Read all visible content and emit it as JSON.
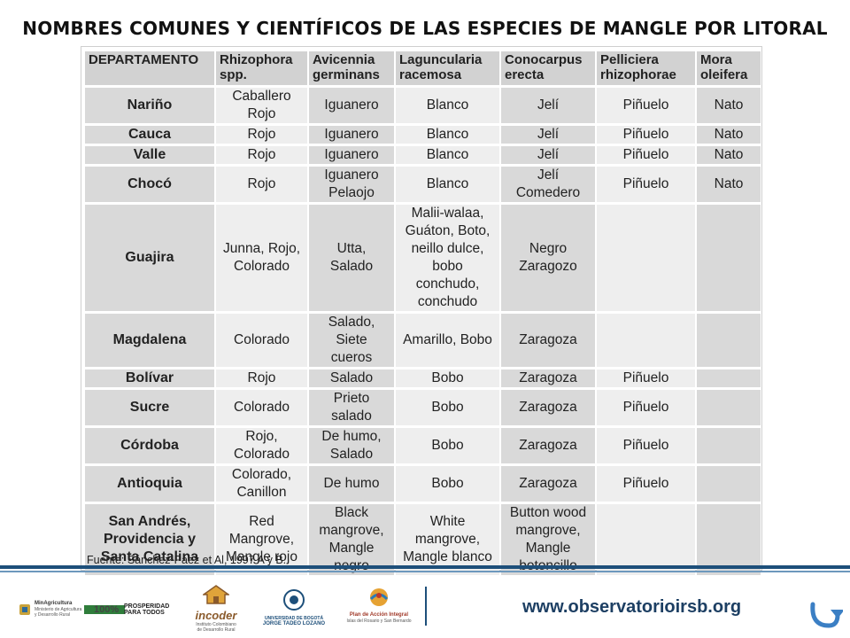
{
  "title": "NOMBRES COMUNES Y CIENTÍFICOS DE LAS ESPECIES DE MANGLE POR LITORAL",
  "table": {
    "headers": [
      [
        "DEPARTAMENTO",
        ""
      ],
      [
        "Rhizophora",
        "spp."
      ],
      [
        "Avicennia",
        "germinans"
      ],
      [
        "Laguncularia",
        "racemosa"
      ],
      [
        "Conocarpus",
        "erecta"
      ],
      [
        "Pelliciera",
        "rhizophorae"
      ],
      [
        "Mora",
        "oleifera"
      ]
    ],
    "rows": [
      {
        "dept": "Nariño",
        "cells": [
          [
            "Caballero",
            "Rojo"
          ],
          [
            "Iguanero"
          ],
          [
            "Blanco"
          ],
          [
            "Jelí"
          ],
          [
            "Piñuelo"
          ],
          [
            "Nato"
          ]
        ]
      },
      {
        "dept": "Cauca",
        "cells": [
          [
            "Rojo"
          ],
          [
            "Iguanero"
          ],
          [
            "Blanco"
          ],
          [
            "Jelí"
          ],
          [
            "Piñuelo"
          ],
          [
            "Nato"
          ]
        ]
      },
      {
        "dept": "Valle",
        "cells": [
          [
            "Rojo"
          ],
          [
            "Iguanero"
          ],
          [
            "Blanco"
          ],
          [
            "Jelí"
          ],
          [
            "Piñuelo"
          ],
          [
            "Nato"
          ]
        ]
      },
      {
        "dept": "Chocó",
        "cells": [
          [
            "Rojo"
          ],
          [
            "Iguanero",
            "Pelaojo"
          ],
          [
            "Blanco"
          ],
          [
            "Jelí",
            "Comedero"
          ],
          [
            "Piñuelo"
          ],
          [
            "Nato"
          ]
        ]
      },
      {
        "dept": "Guajira",
        "cells": [
          [
            "Junna, Rojo,",
            "Colorado"
          ],
          [
            "Utta,",
            "Salado"
          ],
          [
            "Malii-walaa,",
            "Guáton, Boto,",
            "neillo dulce,",
            "bobo",
            "conchudo,",
            "conchudo"
          ],
          [
            "Negro",
            "Zaragozo"
          ],
          [
            ""
          ],
          [
            ""
          ]
        ]
      },
      {
        "dept": "Magdalena",
        "cells": [
          [
            "Colorado"
          ],
          [
            "Salado,",
            "Siete",
            "cueros"
          ],
          [
            "Amarillo, Bobo"
          ],
          [
            "Zaragoza"
          ],
          [
            ""
          ],
          [
            ""
          ]
        ]
      },
      {
        "dept": "Bolívar",
        "cells": [
          [
            "Rojo"
          ],
          [
            "Salado"
          ],
          [
            "Bobo"
          ],
          [
            "Zaragoza"
          ],
          [
            "Piñuelo"
          ],
          [
            ""
          ]
        ]
      },
      {
        "dept": "Sucre",
        "cells": [
          [
            "Colorado"
          ],
          [
            "Prieto",
            "salado"
          ],
          [
            "Bobo"
          ],
          [
            "Zaragoza"
          ],
          [
            "Piñuelo"
          ],
          [
            ""
          ]
        ]
      },
      {
        "dept": "Córdoba",
        "cells": [
          [
            "Rojo,",
            "Colorado"
          ],
          [
            "De humo,",
            "Salado"
          ],
          [
            "Bobo"
          ],
          [
            "Zaragoza"
          ],
          [
            "Piñuelo"
          ],
          [
            ""
          ]
        ]
      },
      {
        "dept": "Antioquia",
        "cells": [
          [
            "Colorado,",
            "Canillon"
          ],
          [
            "De humo"
          ],
          [
            "Bobo"
          ],
          [
            "Zaragoza"
          ],
          [
            "Piñuelo"
          ],
          [
            ""
          ]
        ]
      },
      {
        "dept": "San Andrés, Providencia y Santa Catalina",
        "dept_lines": [
          "San Andrés,",
          "Providencia y",
          "Santa Catalina"
        ],
        "cells": [
          [
            "Red",
            "Mangrove,",
            "Mangle rojo"
          ],
          [
            "Black",
            "mangrove,",
            "Mangle",
            "negro"
          ],
          [
            "White",
            "mangrove,",
            "Mangle blanco"
          ],
          [
            "Button wood",
            "mangrove,",
            "Mangle",
            "botoncillo"
          ],
          [
            ""
          ],
          [
            ""
          ]
        ]
      }
    ],
    "row_heights": [
      40,
      17,
      17,
      40,
      118,
      58,
      17,
      38,
      38,
      38,
      78
    ],
    "source": "Fuente: Sánchez-Páez et Al, 1997 A y B."
  },
  "footer": {
    "url": "www.observatorioirsb.org",
    "logos": {
      "minagricultura": [
        "MinAgricultura",
        "Ministerio de Agricultura",
        "y Desarrollo Rural"
      ],
      "hundred": "100%",
      "prosperidad": [
        "PROSPERIDAD",
        "PARA TODOS"
      ],
      "incoder": "incoder",
      "incoder_sub": [
        "Instituto Colombiano",
        "de Desarrollo Rural"
      ],
      "ujtl": [
        "UNIVERSIDAD DE BOGOTÁ",
        "JORGE TADEO LOZANO"
      ],
      "plan": [
        "Plan de Acción Integral",
        "Islas del Rosario y San Bernardo"
      ]
    },
    "return_icon": "return-arrow-icon",
    "colors": {
      "line": "#1d4f7a",
      "url": "#1d3f63"
    }
  }
}
